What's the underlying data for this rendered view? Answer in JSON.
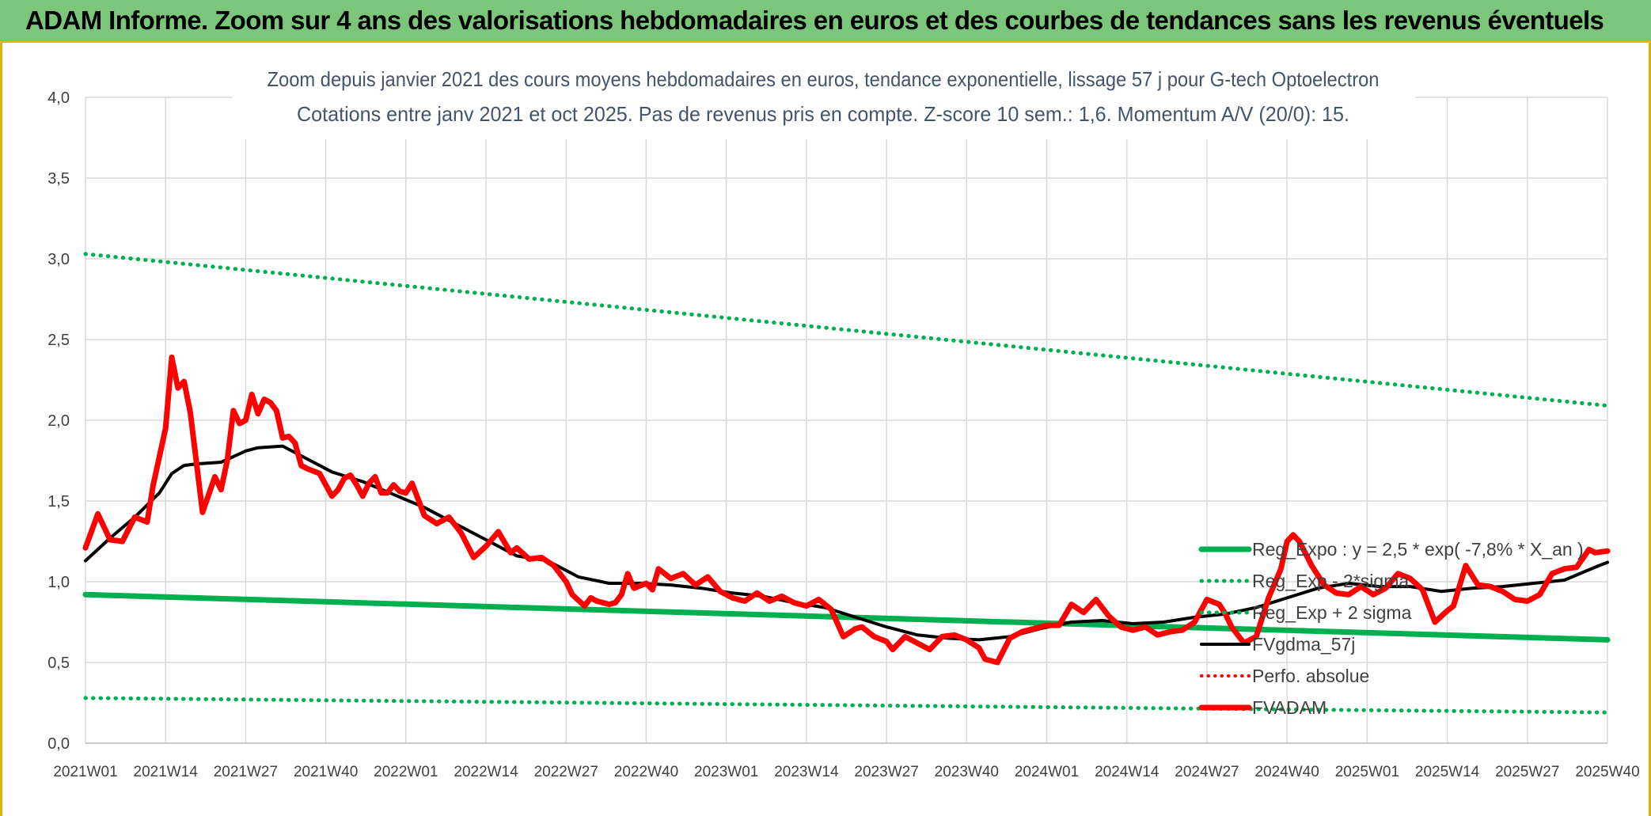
{
  "header": {
    "title": "ADAM Informe. Zoom sur 4 ans des valorisations hebdomadaires en euros et des courbes de tendances sans les revenus éventuels"
  },
  "chart_data": {
    "type": "line",
    "title_line1": "Zoom depuis janvier 2021 des cours moyens hebdomadaires en euros, tendance exponentielle, lissage 57 j pour G-tech Optoelectron",
    "title_line2": "Cotations entre janv 2021 et oct 2025. Pas de revenus pris en compte. Z-score 10 sem.: 1,6. Momentum A/V (20/0): 15.",
    "x_range": [
      0,
      247
    ],
    "ylim": [
      0,
      4
    ],
    "y_ticks": [
      "0,0",
      "0,5",
      "1,0",
      "1,5",
      "2,0",
      "2,5",
      "3,0",
      "3,5",
      "4,0"
    ],
    "x_ticks": [
      {
        "label": "2021W01",
        "x": 0
      },
      {
        "label": "2021W14",
        "x": 13
      },
      {
        "label": "2021W27",
        "x": 26
      },
      {
        "label": "2021W40",
        "x": 39
      },
      {
        "label": "2022W01",
        "x": 52
      },
      {
        "label": "2022W14",
        "x": 65
      },
      {
        "label": "2022W27",
        "x": 78
      },
      {
        "label": "2022W40",
        "x": 91
      },
      {
        "label": "2023W01",
        "x": 104
      },
      {
        "label": "2023W14",
        "x": 117
      },
      {
        "label": "2023W27",
        "x": 130
      },
      {
        "label": "2023W40",
        "x": 143
      },
      {
        "label": "2024W01",
        "x": 156
      },
      {
        "label": "2024W14",
        "x": 169
      },
      {
        "label": "2024W27",
        "x": 182
      },
      {
        "label": "2024W40",
        "x": 195
      },
      {
        "label": "2025W01",
        "x": 208
      },
      {
        "label": "2025W14",
        "x": 221
      },
      {
        "label": "2025W27",
        "x": 234
      },
      {
        "label": "2025W40",
        "x": 247
      }
    ],
    "grid": true,
    "legend_position": "bottom-right",
    "colors": {
      "green": "#00b050",
      "red": "#ff0000",
      "black": "#000000",
      "grid": "#d9d9d9",
      "text": "#404040",
      "header_bg": "#7bc67a"
    },
    "series": [
      {
        "name": "Reg_Expo : y = 2,5 * exp( -7,8% *  X_an )",
        "style": "solid-green",
        "x": [
          0,
          247
        ],
        "values": [
          0.92,
          0.64
        ]
      },
      {
        "name": "Reg_Exp - 2*sigma",
        "style": "dotted-green",
        "x": [
          0,
          247
        ],
        "values": [
          0.28,
          0.19
        ]
      },
      {
        "name": "Reg_Exp + 2 sigma",
        "style": "dotted-green",
        "x": [
          0,
          247
        ],
        "values": [
          3.03,
          2.09
        ]
      },
      {
        "name": "FVgdma_57j",
        "style": "solid-black",
        "x": [
          0,
          4,
          8,
          12,
          14,
          16,
          18,
          22,
          26,
          28,
          32,
          35,
          40,
          45,
          50,
          55,
          60,
          65,
          70,
          75,
          80,
          85,
          90,
          95,
          100,
          105,
          110,
          115,
          120,
          125,
          130,
          135,
          140,
          145,
          150,
          155,
          160,
          165,
          170,
          175,
          180,
          185,
          190,
          195,
          200,
          205,
          210,
          215,
          220,
          225,
          230,
          235,
          240,
          245,
          247
        ],
        "values": [
          1.13,
          1.27,
          1.4,
          1.55,
          1.67,
          1.72,
          1.73,
          1.74,
          1.81,
          1.83,
          1.84,
          1.78,
          1.68,
          1.62,
          1.54,
          1.46,
          1.36,
          1.26,
          1.16,
          1.13,
          1.03,
          0.99,
          0.99,
          0.98,
          0.96,
          0.93,
          0.91,
          0.87,
          0.84,
          0.78,
          0.72,
          0.67,
          0.65,
          0.64,
          0.66,
          0.71,
          0.75,
          0.76,
          0.74,
          0.75,
          0.78,
          0.8,
          0.84,
          0.9,
          0.96,
          0.99,
          0.97,
          0.97,
          0.94,
          0.96,
          0.97,
          0.99,
          1.01,
          1.09,
          1.12
        ]
      },
      {
        "name": "Perfo. absolue",
        "style": "dotted-red",
        "x": [],
        "values": []
      },
      {
        "name": "FVADAM",
        "style": "solid-red",
        "x": [
          0,
          2,
          4,
          6,
          8,
          10,
          11,
          13,
          14,
          15,
          16,
          17,
          19,
          21,
          22,
          23,
          24,
          25,
          26,
          27,
          28,
          29,
          30,
          31,
          32,
          33,
          34,
          35,
          36,
          38,
          40,
          41,
          42,
          43,
          44,
          45,
          46,
          47,
          48,
          49,
          50,
          51,
          52,
          53,
          55,
          57,
          59,
          61,
          63,
          65,
          67,
          69,
          70,
          72,
          74,
          76,
          78,
          79,
          81,
          82,
          83,
          85,
          86,
          87,
          88,
          89,
          91,
          92,
          93,
          95,
          97,
          99,
          101,
          103,
          105,
          107,
          109,
          111,
          113,
          115,
          117,
          119,
          121,
          123,
          125,
          126,
          128,
          130,
          131,
          133,
          135,
          137,
          139,
          141,
          143,
          145,
          146,
          148,
          150,
          152,
          154,
          156,
          158,
          160,
          162,
          164,
          166,
          168,
          170,
          172,
          174,
          176,
          178,
          180,
          182,
          184,
          185,
          186,
          188,
          190,
          192,
          194,
          195,
          196,
          197,
          199,
          201,
          203,
          205,
          207,
          209,
          211,
          213,
          215,
          217,
          219,
          221,
          222,
          224,
          226,
          228,
          230,
          232,
          234,
          236,
          238,
          240,
          242,
          244,
          245,
          247
        ],
        "values": [
          1.21,
          1.42,
          1.26,
          1.25,
          1.4,
          1.37,
          1.6,
          1.95,
          2.39,
          2.2,
          2.24,
          2.05,
          1.43,
          1.65,
          1.57,
          1.75,
          2.06,
          1.98,
          2.0,
          2.16,
          2.04,
          2.13,
          2.11,
          2.06,
          1.89,
          1.9,
          1.86,
          1.72,
          1.7,
          1.67,
          1.53,
          1.57,
          1.64,
          1.66,
          1.6,
          1.53,
          1.61,
          1.65,
          1.55,
          1.55,
          1.6,
          1.56,
          1.55,
          1.61,
          1.41,
          1.36,
          1.4,
          1.3,
          1.15,
          1.22,
          1.31,
          1.18,
          1.21,
          1.14,
          1.15,
          1.1,
          1.0,
          0.92,
          0.85,
          0.9,
          0.88,
          0.86,
          0.87,
          0.92,
          1.05,
          0.96,
          0.99,
          0.95,
          1.08,
          1.02,
          1.05,
          0.98,
          1.03,
          0.94,
          0.9,
          0.88,
          0.93,
          0.88,
          0.91,
          0.87,
          0.85,
          0.89,
          0.83,
          0.66,
          0.71,
          0.72,
          0.66,
          0.63,
          0.58,
          0.66,
          0.62,
          0.58,
          0.66,
          0.67,
          0.64,
          0.59,
          0.52,
          0.5,
          0.65,
          0.69,
          0.71,
          0.73,
          0.73,
          0.86,
          0.81,
          0.89,
          0.79,
          0.72,
          0.7,
          0.72,
          0.67,
          0.69,
          0.7,
          0.75,
          0.89,
          0.86,
          0.8,
          0.72,
          0.62,
          0.66,
          0.9,
          1.08,
          1.25,
          1.29,
          1.25,
          1.1,
          0.98,
          0.93,
          0.92,
          0.97,
          0.92,
          0.96,
          1.05,
          1.02,
          0.95,
          0.75,
          0.82,
          0.85,
          1.1,
          0.98,
          0.97,
          0.94,
          0.89,
          0.88,
          0.92,
          1.05,
          1.08,
          1.09,
          1.2,
          1.18,
          1.19
        ]
      }
    ]
  }
}
